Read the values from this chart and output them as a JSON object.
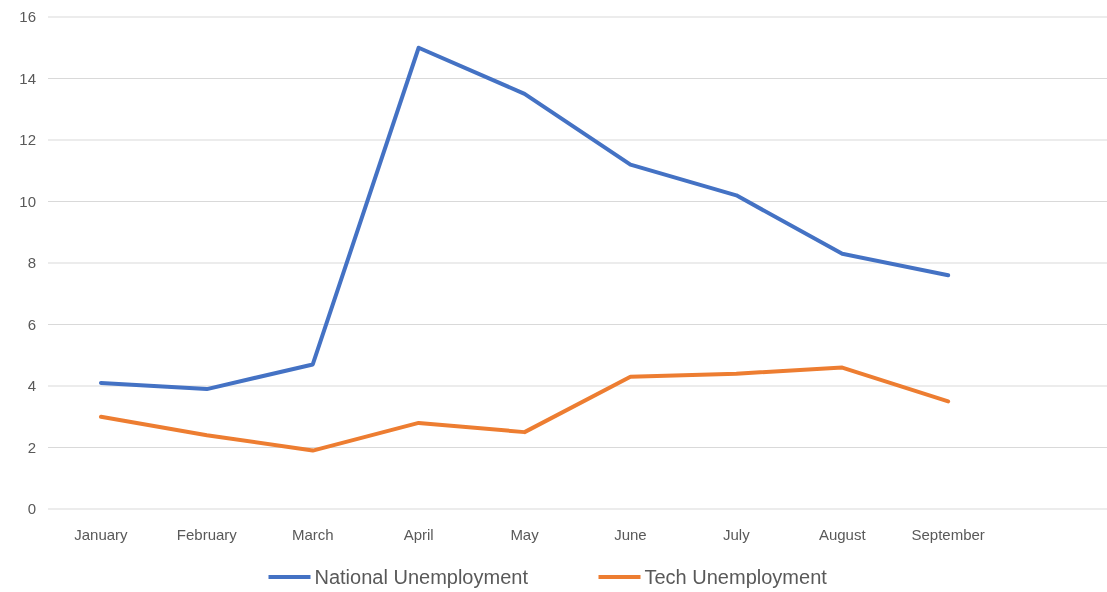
{
  "chart_data": {
    "type": "line",
    "categories": [
      "January",
      "February",
      "March",
      "April",
      "May",
      "June",
      "July",
      "August",
      "September",
      null
    ],
    "series": [
      {
        "name": "National Unemployment",
        "color": "#4472c4",
        "values": [
          4.1,
          3.9,
          4.7,
          15.0,
          13.5,
          11.2,
          10.2,
          8.3,
          7.6,
          null
        ]
      },
      {
        "name": "Tech Unemployment",
        "color": "#ed7d31",
        "values": [
          3.0,
          2.4,
          1.9,
          2.8,
          2.5,
          4.3,
          4.4,
          4.6,
          3.5,
          null
        ]
      }
    ],
    "ylim": [
      0,
      16
    ],
    "yticks": [
      0,
      2,
      4,
      6,
      8,
      10,
      12,
      14,
      16
    ],
    "grid": "y",
    "legend": "bottom",
    "marker": "none",
    "line_style": "solid"
  }
}
